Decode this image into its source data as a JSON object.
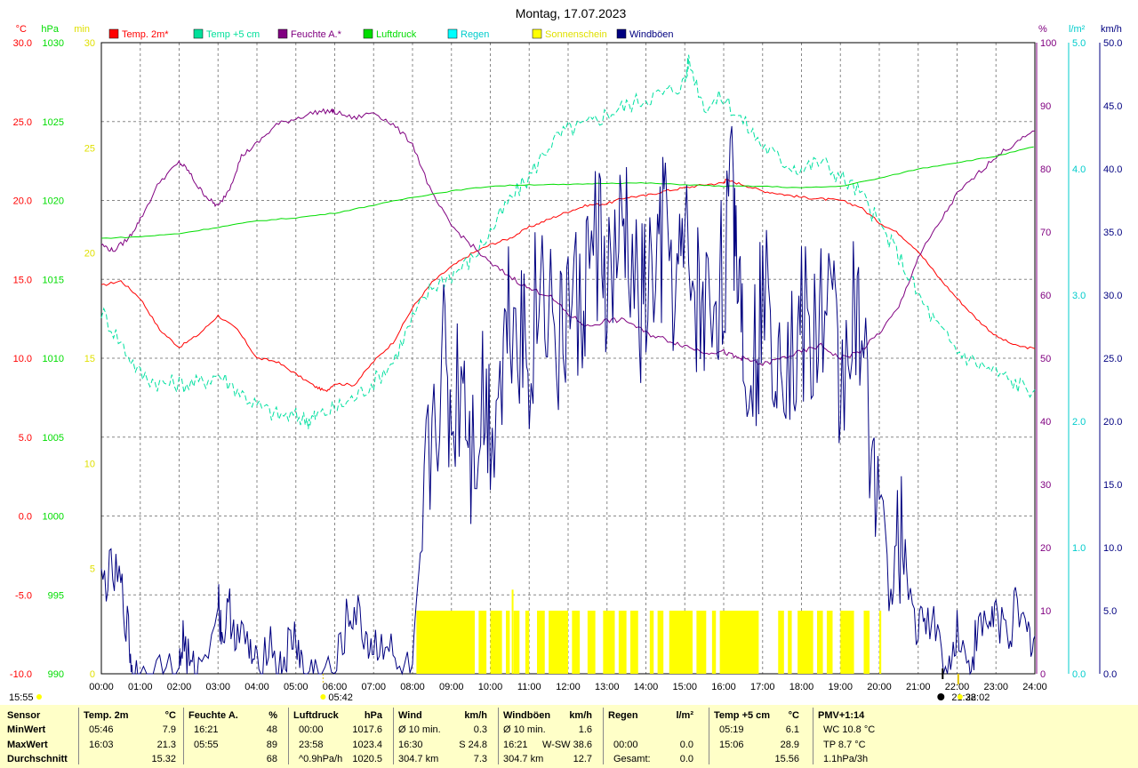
{
  "title": "Montag, 17.07.2023",
  "axes_units": {
    "temp": "°C",
    "press": "hPa",
    "sun": "min",
    "hum": "%",
    "rain": "l/m²",
    "wind": "km/h"
  },
  "legend": [
    {
      "label": "Temp. 2m*",
      "color": "#ff0000"
    },
    {
      "label": "Temp +5 cm",
      "color": "#00e09a"
    },
    {
      "label": "Feuchte A.*",
      "color": "#800080"
    },
    {
      "label": "Luftdruck",
      "color": "#00dd00"
    },
    {
      "label": "Regen",
      "color": "#00ffff"
    },
    {
      "label": "Sonnenschein",
      "color": "#ffff00"
    },
    {
      "label": "Windböen",
      "color": "#000080"
    }
  ],
  "colors": {
    "temp": "#ff0000",
    "temp5": "#00e0a0",
    "hum": "#800080",
    "press": "#00dd00",
    "sun": "#ffff00",
    "wind": "#000080",
    "rain": "#00cccc",
    "sunAxis": "#e0e000"
  },
  "chart_data": {
    "type": "line",
    "x_label_unit": "Uhrzeit",
    "x_ticks": [
      "00:00",
      "01:00",
      "02:00",
      "03:00",
      "04:00",
      "05:00",
      "06:00",
      "07:00",
      "08:00",
      "09:00",
      "10:00",
      "11:00",
      "12:00",
      "13:00",
      "14:00",
      "15:00",
      "16:00",
      "17:00",
      "18:00",
      "19:00",
      "20:00",
      "21:00",
      "22:00",
      "23:00",
      "24:00"
    ],
    "x_range": [
      0,
      24
    ],
    "axes": {
      "temp": {
        "range": [
          -10,
          30
        ],
        "ticks": [
          "30.0",
          "25.0",
          "20.0",
          "15.0",
          "10.0",
          "5.0",
          "0.0",
          "-5.0",
          "-10.0"
        ]
      },
      "press": {
        "range": [
          990,
          1030
        ],
        "ticks": [
          "1030",
          "1025",
          "1020",
          "1015",
          "1010",
          "1005",
          "1000",
          "995",
          "990"
        ]
      },
      "sun": {
        "range": [
          0,
          30
        ],
        "ticks": [
          "30",
          "25",
          "20",
          "15",
          "10",
          "5",
          "0"
        ]
      },
      "hum": {
        "range": [
          0,
          100
        ],
        "ticks": [
          "100",
          "90",
          "80",
          "70",
          "60",
          "50",
          "40",
          "30",
          "20",
          "10",
          "0"
        ]
      },
      "rain": {
        "range": [
          0,
          5
        ],
        "ticks": [
          "5.0",
          "4.0",
          "3.0",
          "2.0",
          "1.0",
          "0.0"
        ]
      },
      "wind": {
        "range": [
          0,
          50
        ],
        "ticks": [
          "50.0",
          "45.0",
          "40.0",
          "35.0",
          "30.0",
          "25.0",
          "20.0",
          "15.0",
          "10.0",
          "5.0",
          "0.0"
        ]
      }
    },
    "series": [
      {
        "name": "Temp. 2m*",
        "axis": "temp",
        "x": [
          0,
          0.5,
          1,
          1.5,
          2,
          2.5,
          3,
          3.5,
          4,
          4.5,
          5,
          5.5,
          5.77,
          6,
          6.5,
          7,
          7.5,
          8,
          8.5,
          9,
          9.5,
          10,
          10.5,
          11,
          11.5,
          12,
          12.5,
          13,
          13.5,
          14,
          14.5,
          15,
          15.5,
          16,
          16.05,
          16.5,
          17,
          17.5,
          18,
          18.5,
          19,
          19.5,
          20,
          20.5,
          21,
          21.5,
          22,
          22.5,
          23,
          23.5,
          24
        ],
        "y": [
          14.6,
          14.9,
          13.8,
          11.8,
          10.7,
          11.5,
          12.7,
          11.8,
          10.0,
          9.8,
          9.0,
          8.2,
          7.9,
          8.4,
          8.3,
          9.8,
          11.0,
          13.2,
          14.8,
          15.8,
          16.6,
          17.2,
          17.6,
          18.3,
          18.8,
          19.3,
          19.7,
          19.8,
          20.2,
          20.3,
          20.6,
          20.8,
          21.0,
          21.1,
          21.3,
          21.0,
          20.6,
          20.4,
          20.2,
          20.1,
          20.0,
          19.6,
          18.6,
          17.9,
          16.8,
          15.2,
          13.8,
          12.5,
          11.4,
          10.8,
          10.6
        ]
      },
      {
        "name": "Temp +5 cm",
        "axis": "temp",
        "x": [
          0,
          0.5,
          1,
          1.5,
          2,
          2.5,
          3,
          3.5,
          4,
          4.5,
          5,
          5.32,
          5.5,
          6,
          6.5,
          7,
          7.5,
          8,
          8.5,
          9,
          9.5,
          10,
          10.5,
          11,
          11.5,
          12,
          12.5,
          13,
          13.5,
          14,
          14.5,
          15,
          15.1,
          15.5,
          16,
          16.5,
          17,
          17.5,
          18,
          18.5,
          19,
          19.5,
          20,
          20.5,
          21,
          21.5,
          22,
          22.5,
          23,
          23.5,
          24
        ],
        "y": [
          13.0,
          11.0,
          9.0,
          8.4,
          8.4,
          8.4,
          9.0,
          8.0,
          7.0,
          6.4,
          6.3,
          6.1,
          6.3,
          6.8,
          7.5,
          8.5,
          9.8,
          12.5,
          14.5,
          15.3,
          16.2,
          18.0,
          20.0,
          21.5,
          23.5,
          24.5,
          24.8,
          25.5,
          26.0,
          26.5,
          26.8,
          27.5,
          28.9,
          26.0,
          26.5,
          25.0,
          23.5,
          22.5,
          22.0,
          22.5,
          21.5,
          20.5,
          18.5,
          16.5,
          14.0,
          12.0,
          10.5,
          9.7,
          9.1,
          8.4,
          8.0
        ]
      },
      {
        "name": "Feuchte A.*",
        "axis": "hum",
        "x": [
          0,
          0.3,
          0.7,
          1,
          1.5,
          2,
          2.2,
          2.5,
          2.8,
          3,
          3.3,
          3.6,
          4,
          4.5,
          5,
          5.5,
          5.92,
          6,
          6.5,
          7,
          7.5,
          8,
          8.5,
          9,
          9.5,
          10,
          10.5,
          11,
          11.5,
          12,
          12.5,
          13,
          13.5,
          14,
          14.5,
          15,
          15.5,
          16,
          16.35,
          16.5,
          17,
          17.5,
          18,
          18.5,
          19,
          19.5,
          20,
          20.5,
          21,
          21.5,
          22,
          22.5,
          23,
          23.5,
          24
        ],
        "y": [
          68,
          67,
          69,
          72,
          78,
          81,
          80,
          77,
          75,
          74,
          77,
          82,
          84,
          87,
          88,
          89,
          89.2,
          89,
          88,
          89,
          87,
          84,
          76,
          71,
          68,
          65,
          63,
          61,
          60,
          57,
          55,
          56,
          56,
          54,
          53,
          52,
          51,
          51,
          50,
          50,
          49,
          50,
          51,
          52,
          50,
          51,
          54,
          58,
          66,
          71,
          76,
          79,
          82,
          84,
          86
        ]
      },
      {
        "name": "Luftdruck",
        "axis": "press",
        "x": [
          0,
          1,
          2,
          3,
          4,
          5,
          6,
          7,
          8,
          9,
          10,
          11,
          12,
          13,
          14,
          15,
          16,
          17,
          18,
          19,
          20,
          21,
          22,
          23,
          23.97
        ],
        "y": [
          1017.6,
          1017.7,
          1017.9,
          1018.3,
          1018.7,
          1018.9,
          1019.2,
          1019.7,
          1020.2,
          1020.6,
          1020.9,
          1021.0,
          1021.0,
          1021.1,
          1021.1,
          1021.0,
          1020.9,
          1020.9,
          1020.8,
          1020.9,
          1021.4,
          1022.0,
          1022.4,
          1022.8,
          1023.4
        ]
      },
      {
        "name": "Windböen",
        "axis": "wind",
        "x": [
          0,
          0.25,
          0.5,
          0.7,
          0.8,
          1,
          1.5,
          2,
          2.1,
          2.3,
          2.5,
          3,
          3.1,
          3.3,
          3.5,
          3.8,
          4,
          4.3,
          4.6,
          4.8,
          5,
          5.2,
          5.5,
          6,
          6.3,
          6.5,
          6.8,
          7,
          7.3,
          7.6,
          8,
          8.2,
          8.5,
          8.8,
          9,
          9.3,
          9.5,
          9.8,
          10,
          10.3,
          10.5,
          10.8,
          11,
          11.3,
          11.5,
          11.8,
          12,
          12.3,
          12.5,
          12.8,
          13,
          13.3,
          13.5,
          13.8,
          14,
          14.3,
          14.5,
          14.8,
          15,
          15.3,
          15.5,
          15.8,
          16,
          16.25,
          16.35,
          16.5,
          16.8,
          17,
          17.3,
          17.5,
          17.8,
          18,
          18.3,
          18.5,
          18.8,
          19,
          19.3,
          19.5,
          19.8,
          20,
          20.3,
          20.5,
          20.7,
          21,
          21.2,
          21.5,
          21.8,
          22,
          22.3,
          22.5,
          22.8,
          23,
          23.3,
          23.5,
          23.8,
          24
        ],
        "y": [
          7,
          8,
          7,
          3,
          0,
          0,
          0,
          0,
          3,
          0,
          0,
          6,
          3,
          5,
          3,
          2,
          0,
          3,
          0,
          2,
          3,
          0,
          0,
          0,
          4,
          5,
          3,
          2,
          3,
          0,
          0,
          8,
          20,
          25,
          20,
          25,
          18,
          22,
          20,
          25,
          30,
          28,
          25,
          32,
          30,
          25,
          30,
          28,
          32,
          35,
          30,
          33,
          35,
          28,
          30,
          32,
          35,
          30,
          33,
          30,
          28,
          30,
          32,
          38,
          34,
          28,
          25,
          30,
          27,
          28,
          24,
          28,
          25,
          30,
          28,
          22,
          30,
          25,
          20,
          15,
          5,
          12,
          8,
          3,
          5,
          3,
          0,
          4,
          0,
          3,
          4,
          5,
          3,
          5,
          3,
          3
        ]
      }
    ],
    "sunshine": {
      "name": "Sonnenschein",
      "axis": "sun",
      "intervals": [
        [
          8.1,
          9.6
        ],
        [
          9.7,
          9.9
        ],
        [
          10.0,
          10.3
        ],
        [
          10.4,
          10.5
        ],
        [
          10.6,
          10.75
        ],
        [
          10.9,
          11.0
        ],
        [
          11.2,
          11.4
        ],
        [
          11.5,
          12.0
        ],
        [
          12.1,
          12.3
        ],
        [
          12.5,
          12.7
        ],
        [
          12.9,
          13.2
        ],
        [
          13.3,
          13.5
        ],
        [
          13.6,
          13.8
        ],
        [
          14.1,
          14.2
        ],
        [
          14.3,
          14.45
        ],
        [
          14.6,
          15.2
        ],
        [
          15.3,
          15.55
        ],
        [
          15.7,
          15.8
        ],
        [
          15.9,
          16.9
        ],
        [
          17.4,
          17.55
        ],
        [
          17.65,
          17.75
        ],
        [
          17.9,
          18.3
        ],
        [
          18.4,
          18.55
        ],
        [
          18.65,
          18.8
        ],
        [
          19.0,
          19.35
        ],
        [
          19.6,
          19.75
        ],
        [
          20.0,
          20.05
        ]
      ],
      "value": 3,
      "peak": [
        10.55,
        4
      ]
    },
    "markers": [
      {
        "label": "05:42",
        "x": 5.7,
        "type": "sunrise"
      },
      {
        "label": "21:38",
        "x": 21.63,
        "type": "sunset"
      },
      {
        "label": "22:02",
        "x": 22.03,
        "type": "moon"
      }
    ],
    "grid": true
  },
  "bottom_left_time": "15:55",
  "stats": {
    "row_labels": [
      "Sensor",
      "MinWert",
      "MaxWert",
      "Durchschnitt"
    ],
    "groups": [
      {
        "name": "Temp. 2m",
        "unit": "°C",
        "rows": [
          [
            "05:46",
            "7.9"
          ],
          [
            "16:03",
            "21.3"
          ],
          [
            "",
            "15.32"
          ]
        ]
      },
      {
        "name": "Feuchte A.",
        "unit": "%",
        "rows": [
          [
            "16:21",
            "48"
          ],
          [
            "05:55",
            "89"
          ],
          [
            "",
            "68"
          ]
        ]
      },
      {
        "name": "Luftdruck",
        "unit": "hPa",
        "rows": [
          [
            "00:00",
            "1017.6"
          ],
          [
            "23:58",
            "1023.4"
          ],
          [
            "^0.9hPa/h",
            "1020.5"
          ]
        ]
      },
      {
        "name": "Wind",
        "unit": "km/h",
        "rows": [
          [
            "Ø 10 min.",
            "0.3"
          ],
          [
            "16:30",
            "S 24.8"
          ],
          [
            "304.7 km",
            "7.3"
          ]
        ]
      },
      {
        "name": "Windböen",
        "unit": "km/h",
        "rows": [
          [
            "Ø 10 min.",
            "1.6"
          ],
          [
            "16:21",
            "W-SW 38.6"
          ],
          [
            "304.7 km",
            "12.7"
          ]
        ]
      },
      {
        "name": "Regen",
        "unit": "l/m²",
        "rows": [
          [
            "",
            ""
          ],
          [
            "00:00",
            "0.0"
          ],
          [
            "Gesamt:",
            "0.0"
          ]
        ]
      },
      {
        "name": "Temp +5 cm",
        "unit": "°C",
        "rows": [
          [
            "05:19",
            "6.1"
          ],
          [
            "15:06",
            "28.9"
          ],
          [
            "",
            "15.56"
          ]
        ]
      },
      {
        "name": "PMV+1:14",
        "unit": "",
        "rows": [
          [
            "WC 10.8 °C",
            ""
          ],
          [
            "TP 8.7 °C",
            ""
          ],
          [
            "1.1hPa/3h",
            ""
          ]
        ]
      }
    ]
  }
}
